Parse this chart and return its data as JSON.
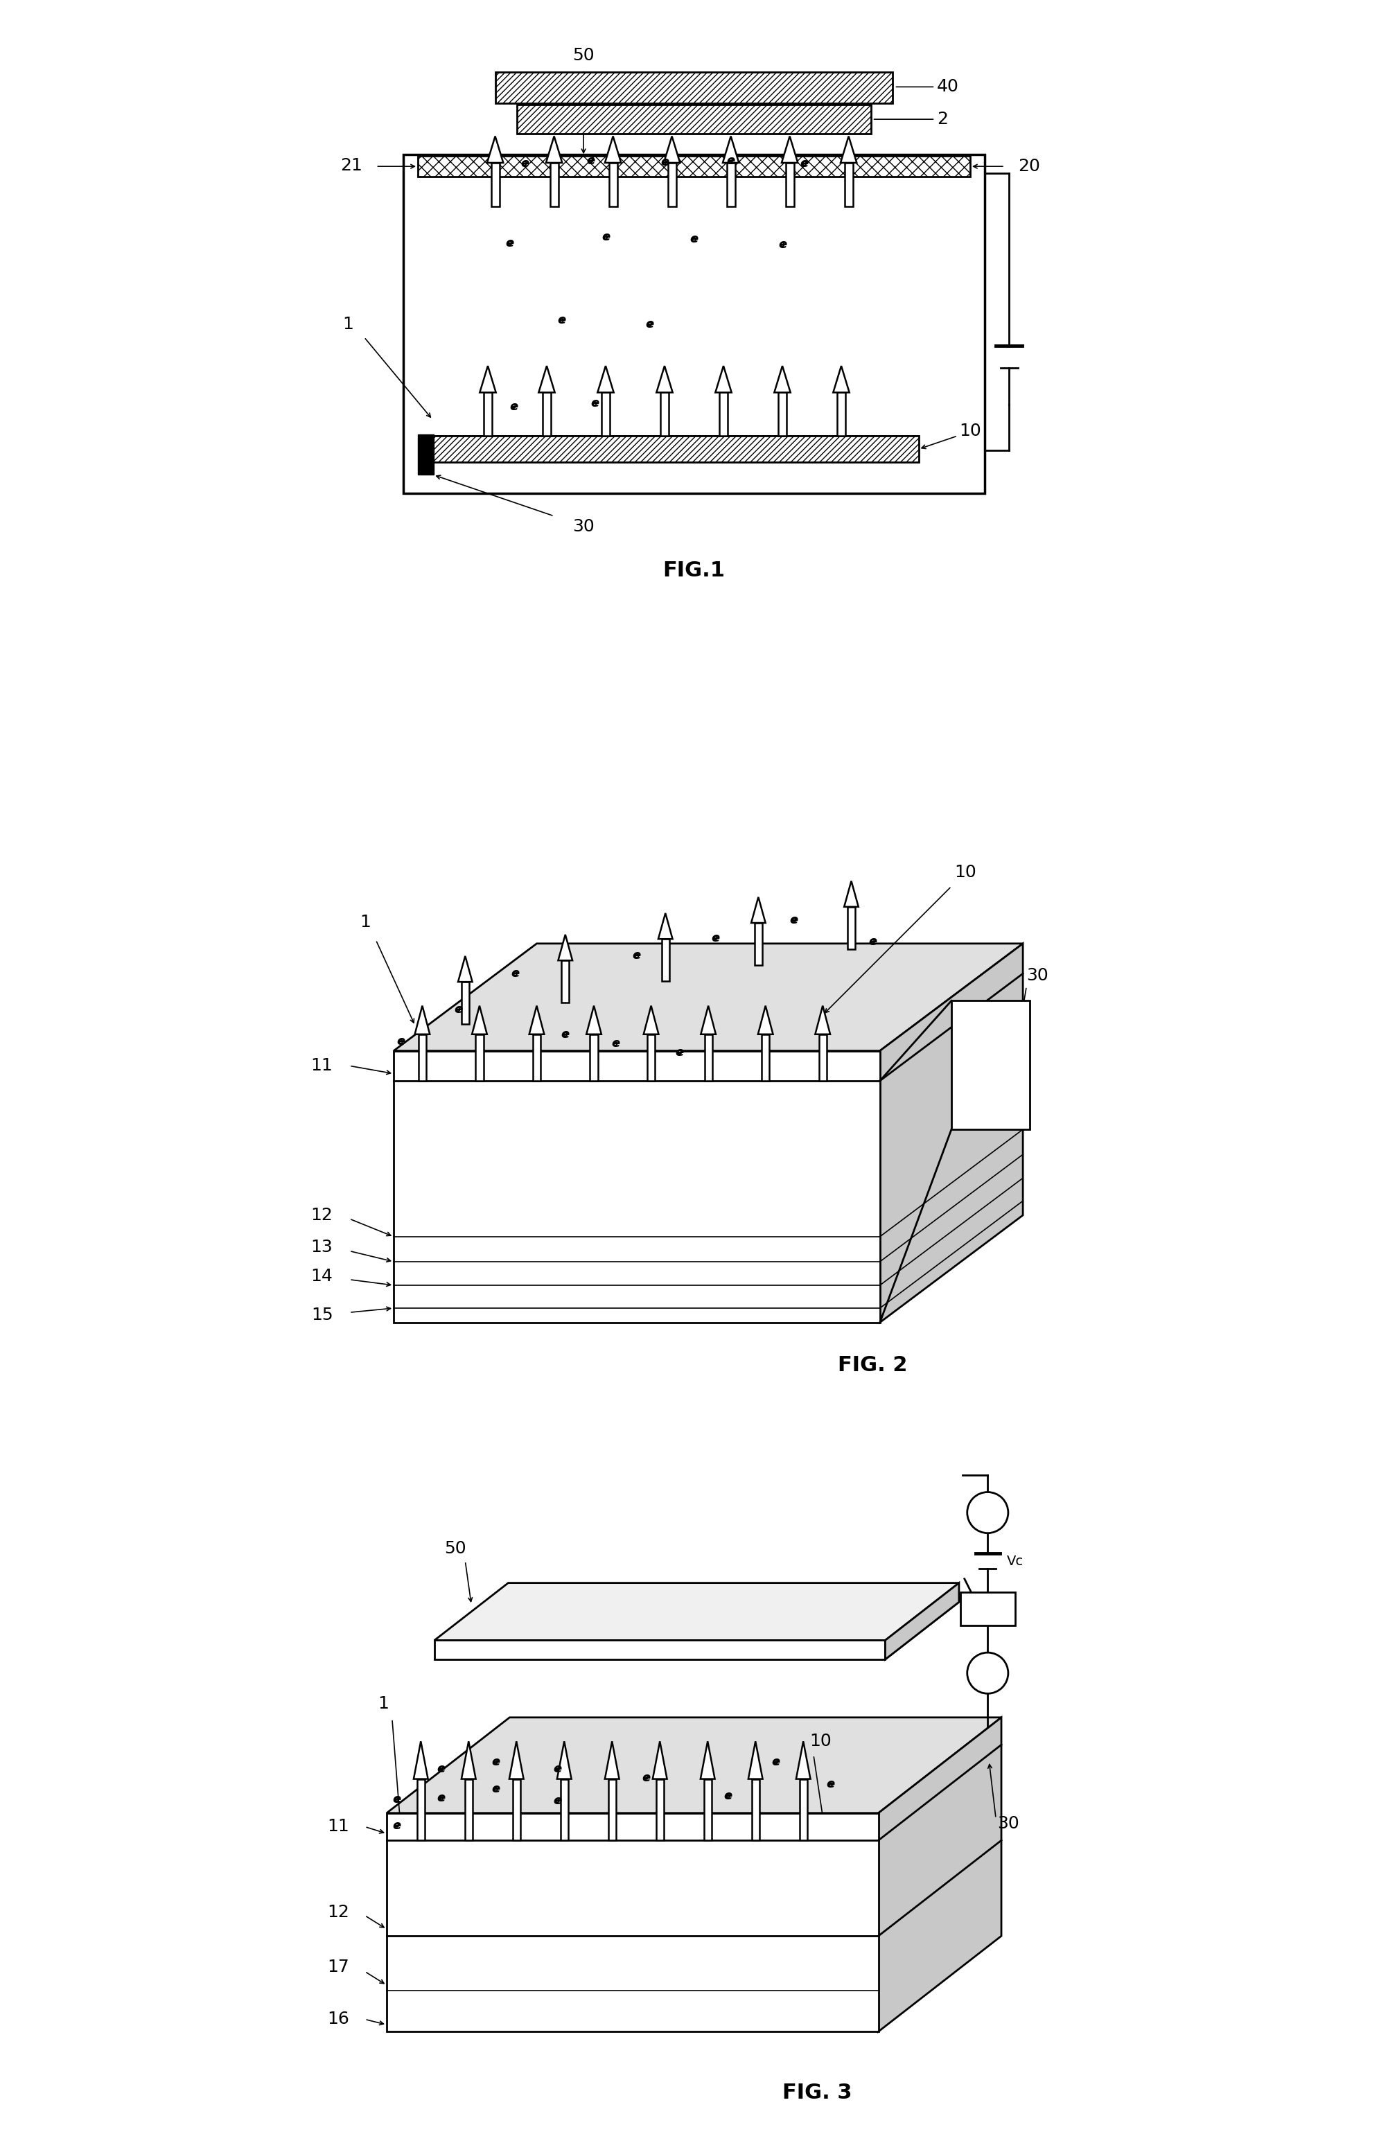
{
  "fig_width": 20.03,
  "fig_height": 30.8,
  "bg_color": "#ffffff",
  "lw_main": 2.0,
  "lw_thin": 1.2,
  "font_size_label": 18,
  "font_size_fig": 22,
  "fig1_title": "FIG.1",
  "fig2_title": "FIG. 2",
  "fig3_title": "FIG. 3"
}
